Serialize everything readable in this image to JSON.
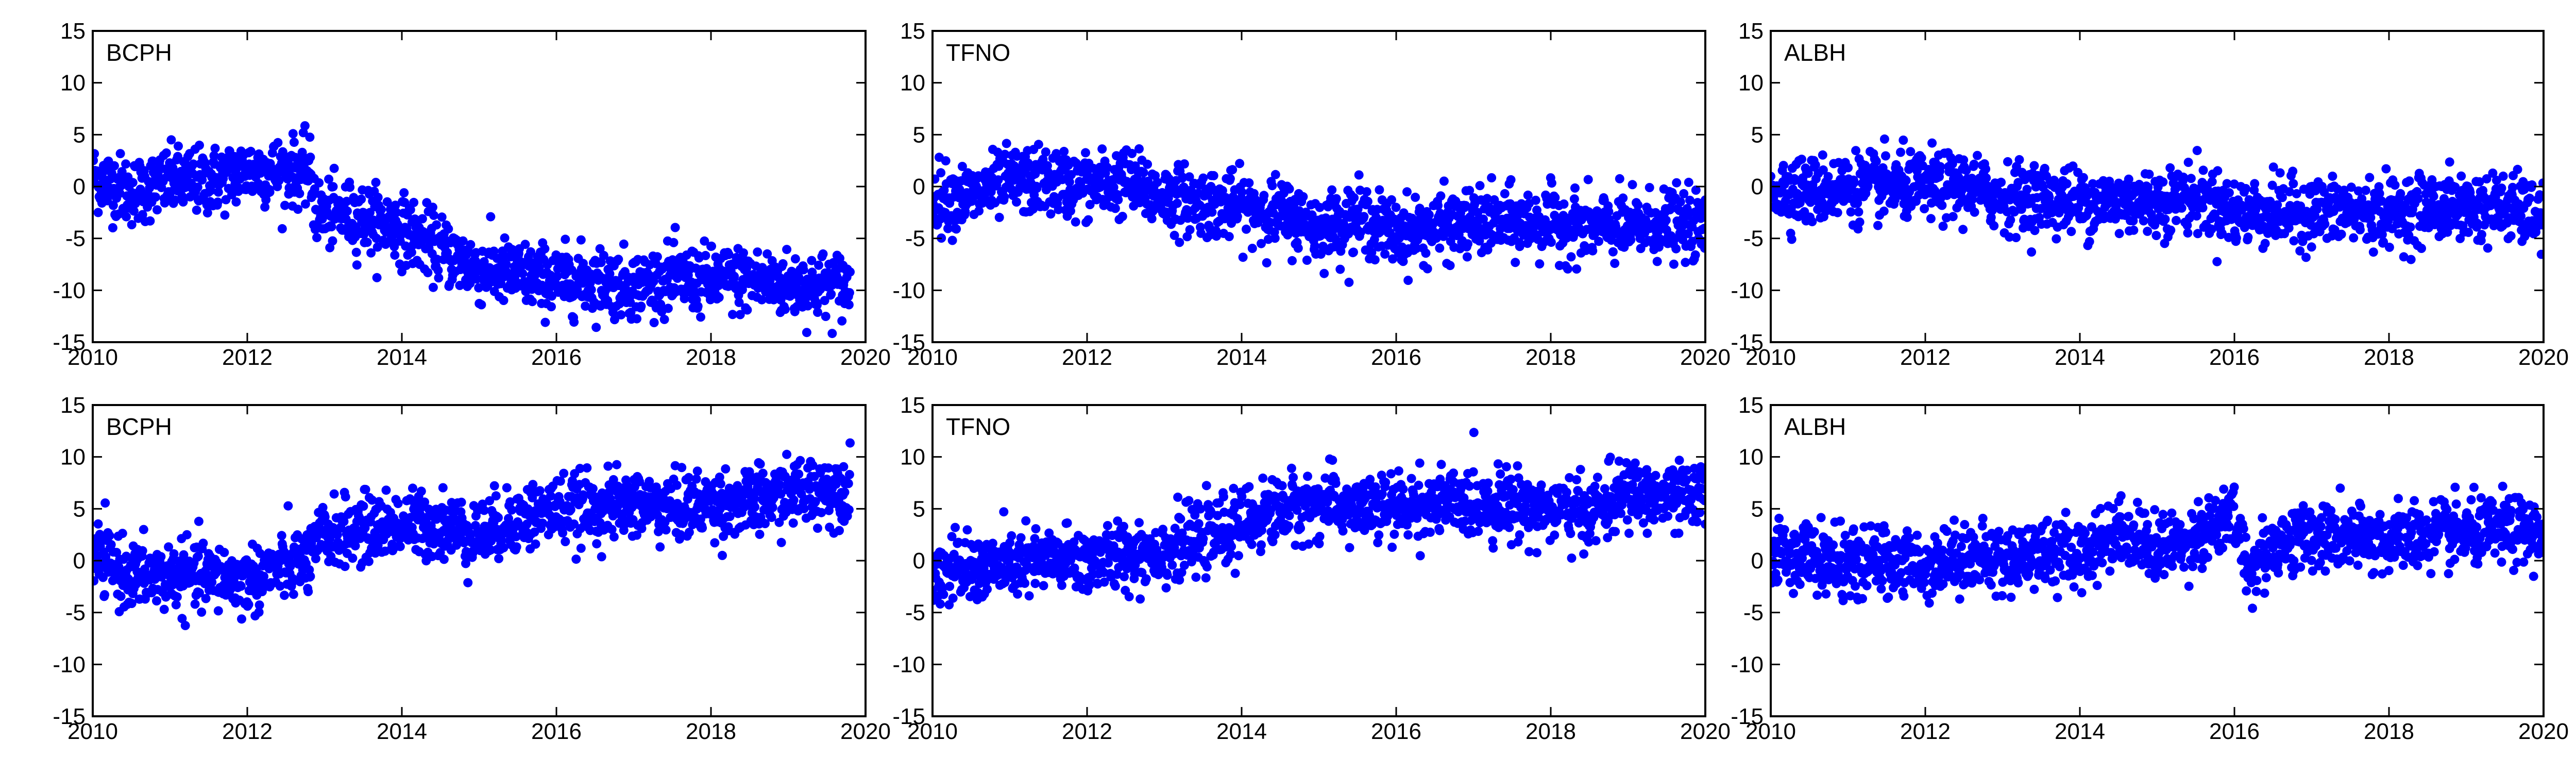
{
  "chart_data": [
    {
      "type": "scatter",
      "title": "BCPH",
      "xlabel": "",
      "ylabel": "",
      "xlim": [
        2010,
        2020
      ],
      "ylim": [
        -15,
        15
      ],
      "xticks": [
        "2010",
        "2012",
        "2014",
        "2016",
        "2018",
        "2020"
      ],
      "yticks": [
        "15",
        "10",
        "5",
        "0",
        "-5",
        "-10",
        "-15"
      ],
      "grid": false,
      "marker_color": "#0000ff",
      "series": [
        {
          "x": [
            2010.0,
            2010.5,
            2011.0,
            2011.5,
            2012.0,
            2012.5,
            2012.8,
            2012.9,
            2013.5,
            2014.0,
            2014.5,
            2015.0,
            2015.5,
            2016.0,
            2016.5,
            2017.0,
            2017.5,
            2018.0,
            2018.5,
            2019.0,
            2019.5,
            2019.8
          ],
          "y": [
            1.0,
            -0.5,
            0.5,
            0.5,
            1.5,
            1.5,
            1.5,
            -2.5,
            -3.0,
            -4.0,
            -6.0,
            -8.0,
            -8.5,
            -9.0,
            -9.0,
            -9.5,
            -9.0,
            -9.0,
            -9.0,
            -9.5,
            -9.5,
            -9.5
          ]
        }
      ]
    },
    {
      "type": "scatter",
      "title": "TFNO",
      "xlabel": "",
      "ylabel": "",
      "xlim": [
        2010,
        2020
      ],
      "ylim": [
        -15,
        15
      ],
      "xticks": [
        "2010",
        "2012",
        "2014",
        "2016",
        "2018",
        "2020"
      ],
      "yticks": [
        "15",
        "10",
        "5",
        "0",
        "-5",
        "-10",
        "-15"
      ],
      "grid": false,
      "marker_color": "#0000ff",
      "series": [
        {
          "x": [
            2010.0,
            2010.5,
            2011.0,
            2011.5,
            2012.0,
            2012.5,
            2013.0,
            2013.5,
            2014.0,
            2014.5,
            2015.0,
            2015.5,
            2016.0,
            2016.5,
            2017.0,
            2017.5,
            2018.0,
            2018.5,
            2019.0,
            2019.5,
            2020.0
          ],
          "y": [
            -1.0,
            -1.0,
            0.5,
            0.5,
            0.0,
            0.5,
            -1.0,
            -1.5,
            -2.0,
            -2.5,
            -4.0,
            -3.0,
            -4.5,
            -4.0,
            -3.5,
            -3.5,
            -3.5,
            -4.0,
            -4.0,
            -3.5,
            -4.0
          ]
        }
      ]
    },
    {
      "type": "scatter",
      "title": "ALBH",
      "xlabel": "",
      "ylabel": "",
      "xlim": [
        2010,
        2020
      ],
      "ylim": [
        -15,
        15
      ],
      "xticks": [
        "2010",
        "2012",
        "2014",
        "2016",
        "2018",
        "2020"
      ],
      "yticks": [
        "15",
        "10",
        "5",
        "0",
        "-5",
        "-10",
        "-15"
      ],
      "grid": false,
      "marker_color": "#0000ff",
      "series": [
        {
          "x": [
            2010.0,
            2010.5,
            2011.0,
            2011.5,
            2012.0,
            2012.5,
            2013.0,
            2013.5,
            2014.0,
            2014.5,
            2015.0,
            2015.5,
            2016.0,
            2016.5,
            2017.0,
            2017.5,
            2018.0,
            2018.5,
            2019.0,
            2019.5,
            2020.0
          ],
          "y": [
            0.0,
            -0.5,
            0.0,
            0.0,
            0.0,
            0.0,
            -1.0,
            -1.0,
            -1.5,
            -1.5,
            -1.5,
            -1.0,
            -2.5,
            -2.5,
            -2.5,
            -2.5,
            -2.5,
            -2.0,
            -2.0,
            -2.0,
            -3.0
          ]
        }
      ]
    },
    {
      "type": "scatter",
      "title": "BCPH",
      "xlabel": "",
      "ylabel": "",
      "xlim": [
        2010,
        2020
      ],
      "ylim": [
        -15,
        15
      ],
      "xticks": [
        "2010",
        "2012",
        "2014",
        "2016",
        "2018",
        "2020"
      ],
      "yticks": [
        "15",
        "10",
        "5",
        "0",
        "-5",
        "-10",
        "-15"
      ],
      "grid": false,
      "marker_color": "#0000ff",
      "series": [
        {
          "x": [
            2010.0,
            2010.5,
            2011.0,
            2011.5,
            2012.0,
            2012.5,
            2012.8,
            2013.0,
            2013.5,
            2014.0,
            2014.5,
            2015.0,
            2015.5,
            2016.0,
            2016.5,
            2017.0,
            2017.5,
            2018.0,
            2018.5,
            2019.0,
            2019.5,
            2019.8
          ],
          "y": [
            0.5,
            -1.5,
            -1.5,
            -1.5,
            -2.0,
            -0.5,
            0.0,
            2.5,
            3.0,
            3.5,
            3.5,
            2.5,
            4.0,
            5.0,
            5.0,
            5.5,
            5.0,
            5.5,
            5.5,
            6.5,
            7.0,
            7.0
          ]
        }
      ]
    },
    {
      "type": "scatter",
      "title": "TFNO",
      "xlabel": "",
      "ylabel": "",
      "xlim": [
        2010,
        2020
      ],
      "ylim": [
        -15,
        15
      ],
      "xticks": [
        "2010",
        "2012",
        "2014",
        "2016",
        "2018",
        "2020"
      ],
      "yticks": [
        "15",
        "10",
        "5",
        "0",
        "-5",
        "-10",
        "-15"
      ],
      "grid": false,
      "marker_color": "#0000ff",
      "series": [
        {
          "x": [
            2010.0,
            2010.5,
            2011.0,
            2011.5,
            2012.0,
            2012.5,
            2013.0,
            2013.5,
            2014.0,
            2014.5,
            2015.0,
            2015.5,
            2016.0,
            2016.5,
            2017.0,
            2017.5,
            2018.0,
            2018.5,
            2019.0,
            2019.5,
            2020.0
          ],
          "y": [
            -1.0,
            -1.0,
            -0.5,
            0.0,
            0.0,
            0.5,
            1.0,
            2.0,
            3.5,
            5.0,
            5.5,
            5.0,
            5.0,
            5.5,
            5.5,
            5.5,
            5.0,
            4.5,
            6.5,
            6.0,
            6.0
          ]
        }
      ]
    },
    {
      "type": "scatter",
      "title": "ALBH",
      "xlabel": "",
      "ylabel": "",
      "xlim": [
        2010,
        2020
      ],
      "ylim": [
        -15,
        15
      ],
      "xticks": [
        "2010",
        "2012",
        "2014",
        "2016",
        "2018",
        "2020"
      ],
      "yticks": [
        "15",
        "10",
        "5",
        "0",
        "-5",
        "-10",
        "-15"
      ],
      "grid": false,
      "marker_color": "#0000ff",
      "series": [
        {
          "x": [
            2010.0,
            2010.5,
            2011.0,
            2011.5,
            2012.0,
            2012.5,
            2013.0,
            2013.5,
            2014.0,
            2014.5,
            2015.0,
            2015.5,
            2016.0,
            2016.2,
            2016.5,
            2017.0,
            2017.5,
            2018.0,
            2018.5,
            2019.0,
            2019.5,
            2020.0
          ],
          "y": [
            1.0,
            0.5,
            -0.5,
            0.0,
            -0.5,
            0.5,
            0.0,
            1.0,
            0.5,
            3.0,
            1.0,
            2.5,
            4.0,
            -1.0,
            1.5,
            2.5,
            2.0,
            2.0,
            2.5,
            2.5,
            3.0,
            2.5
          ]
        }
      ]
    }
  ]
}
